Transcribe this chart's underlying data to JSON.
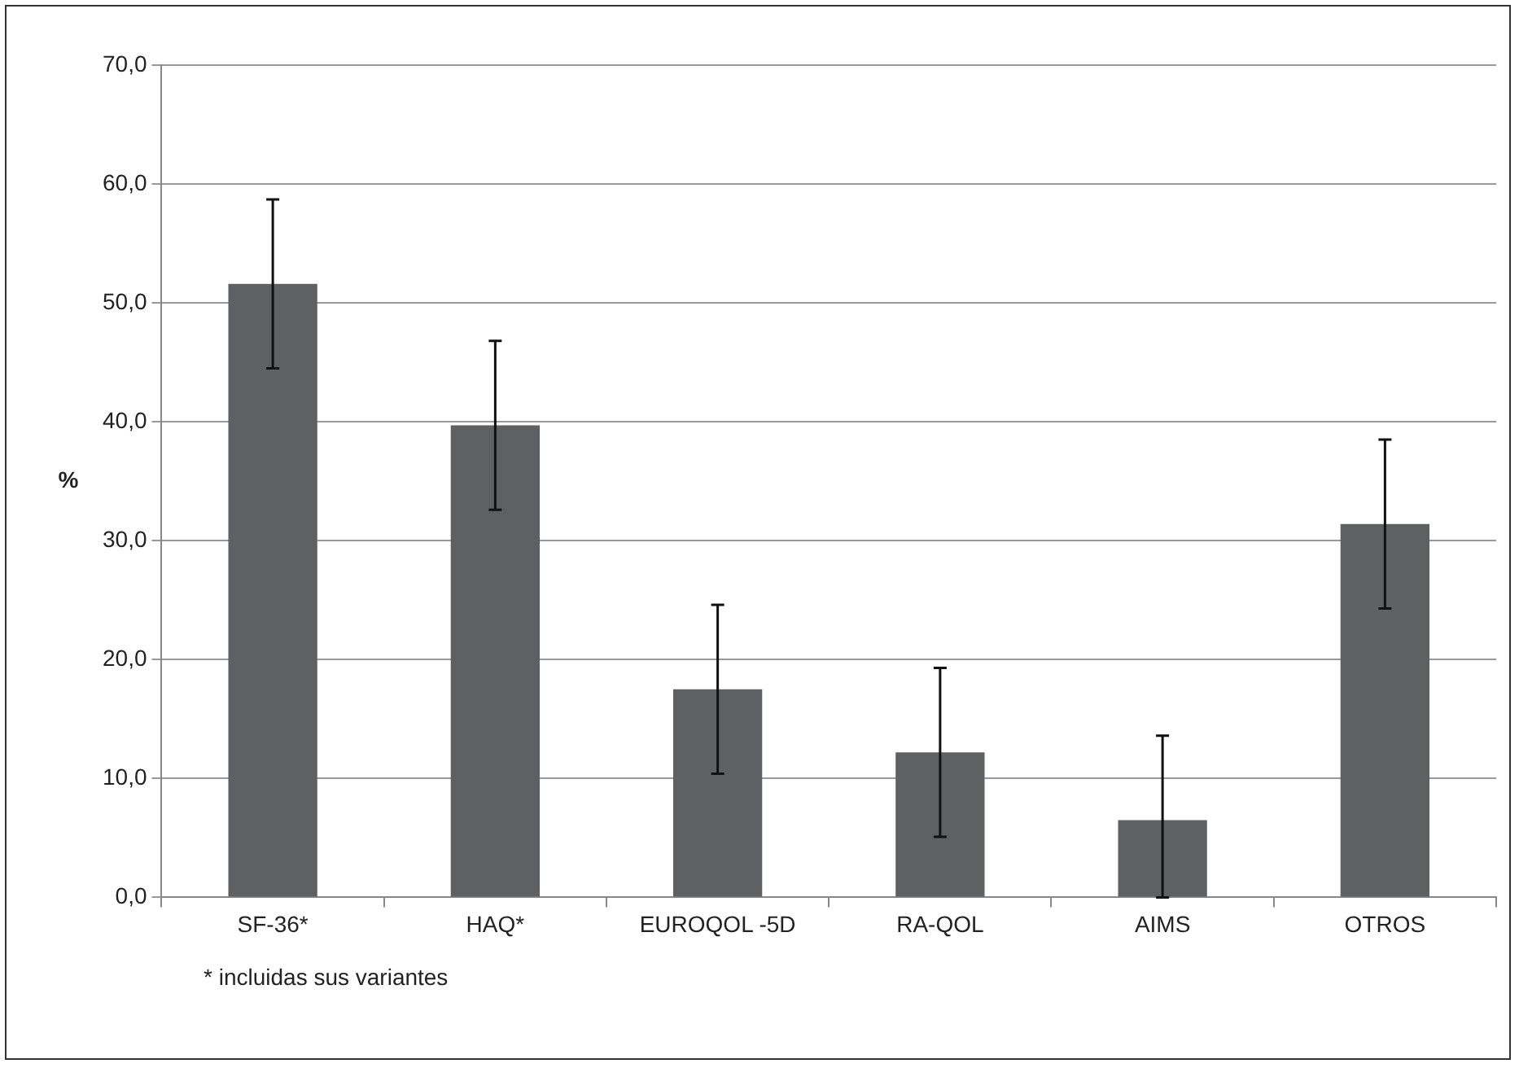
{
  "chart_data": {
    "type": "bar",
    "ylabel": "%",
    "categories": [
      "SF-36*",
      "HAQ*",
      "EUROQOL -5D",
      "RA-QOL",
      "AIMS",
      "OTROS"
    ],
    "values": [
      51.6,
      39.7,
      17.5,
      12.2,
      6.5,
      31.4
    ],
    "errors": [
      7.1,
      7.1,
      7.1,
      7.1,
      [
        0,
        13.6
      ],
      7.1
    ],
    "color": "#5f6062",
    "ylim": [
      0,
      70
    ],
    "yticks": [
      {
        "value": 0,
        "label": "0,0"
      },
      {
        "value": 10,
        "label": "10,0"
      },
      {
        "value": 20,
        "label": "20,0"
      },
      {
        "value": 30,
        "label": "30,0"
      },
      {
        "value": 40,
        "label": "40,0"
      },
      {
        "value": 50,
        "label": "50,0"
      },
      {
        "value": 60,
        "label": "60,0"
      },
      {
        "value": 70,
        "label": "70,0"
      }
    ],
    "grid": "y",
    "legend": false,
    "annotations": [
      "* incluidas sus variantes"
    ]
  }
}
